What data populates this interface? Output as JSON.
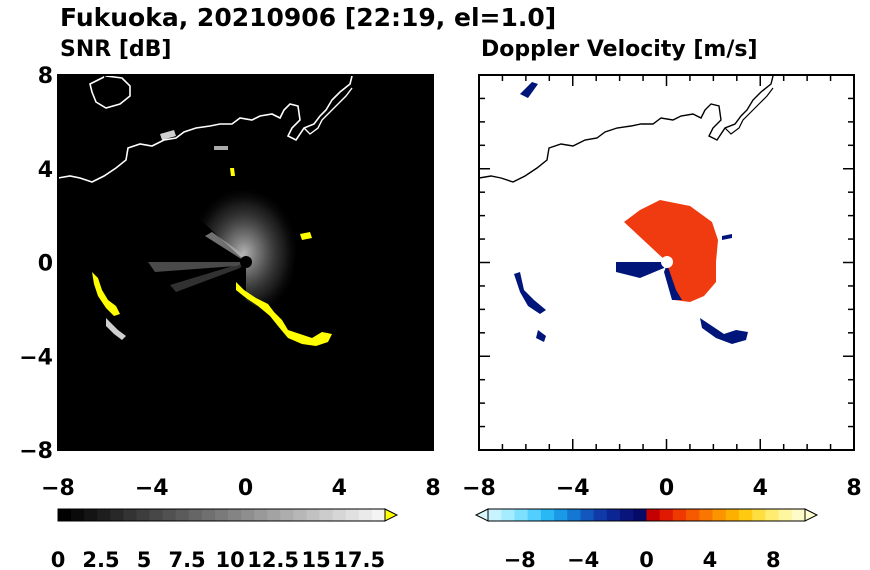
{
  "title": "Fukuoka, 20210906 [22:19, el=1.0]",
  "chart_data": [
    {
      "type": "heatmap",
      "title": "SNR [dB]",
      "xlim": [
        -8,
        8
      ],
      "ylim": [
        -8,
        8
      ],
      "x_ticks": [
        "−8",
        "−4",
        "0",
        "4",
        "8"
      ],
      "y_ticks": [
        "8",
        "4",
        "0",
        "−4",
        "−8"
      ],
      "background_color": "#000000",
      "colorbar": {
        "range": [
          0,
          19
        ],
        "ticks": [
          "0",
          "2.5",
          "5",
          "7.5",
          "10",
          "12.5",
          "15",
          "17.5"
        ],
        "extend_color": "#ffff00",
        "colors": [
          "#000000",
          "#0a0a0a",
          "#141414",
          "#1e1e1e",
          "#282828",
          "#333333",
          "#3d3d3d",
          "#474747",
          "#515151",
          "#5b5b5b",
          "#666666",
          "#707070",
          "#7a7a7a",
          "#848484",
          "#8e8e8e",
          "#999999",
          "#a3a3a3",
          "#adadad",
          "#b7b7b7",
          "#c1c1c1",
          "#cccccc",
          "#d6d6d6",
          "#e0e0e0",
          "#eaeaea",
          "#f4f4f4"
        ]
      },
      "echo_color": "#ffff00",
      "coast_color": "#ffffff"
    },
    {
      "type": "heatmap",
      "title": "Doppler Velocity [m/s]",
      "xlim": [
        -8,
        8
      ],
      "ylim": [
        -8,
        8
      ],
      "x_ticks": [
        "−8",
        "−4",
        "0",
        "4",
        "8"
      ],
      "y_ticks": [
        "8",
        "4",
        "0",
        "−4",
        "−8"
      ],
      "background_color": "#ffffff",
      "colorbar": {
        "range": [
          -10,
          10
        ],
        "ticks": [
          "−8",
          "−4",
          "0",
          "4",
          "8"
        ],
        "low_extend_color": "#d8f8ff",
        "high_extend_color": "#ffffd0",
        "colors": [
          "#c8f4ff",
          "#a6ecff",
          "#7ee0ff",
          "#52cfff",
          "#2ab8f5",
          "#1a9ae6",
          "#1478d2",
          "#1257bd",
          "#0f3aa8",
          "#0b2592",
          "#08157c",
          "#050a66",
          "#c40000",
          "#e01a00",
          "#ee3a00",
          "#f55a00",
          "#f97700",
          "#fc9400",
          "#feb000",
          "#ffca10",
          "#ffde40",
          "#ffec70",
          "#fff6a0",
          "#fffbc8"
        ]
      },
      "approaching_color": "#00157a",
      "receding_color": "#f03a10",
      "coast_color": "#000000"
    }
  ]
}
